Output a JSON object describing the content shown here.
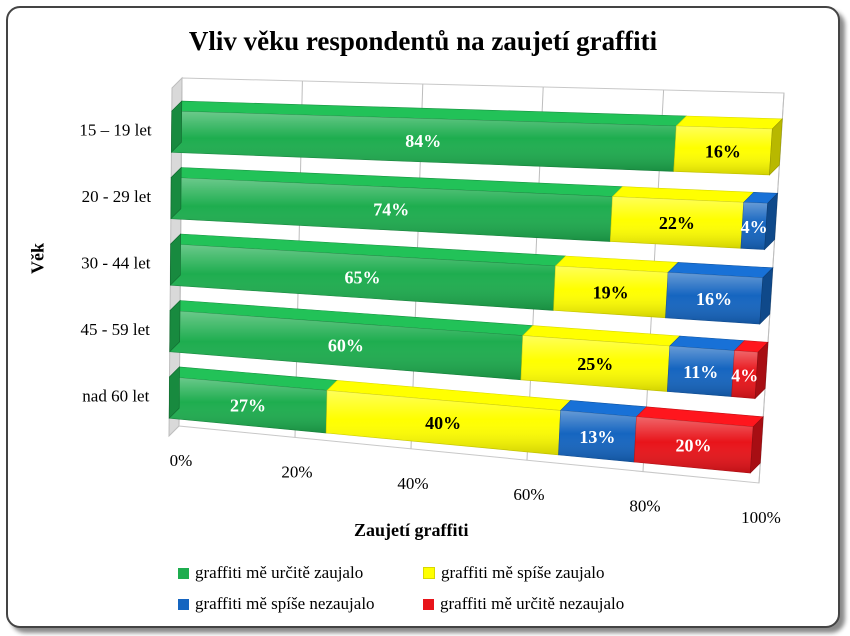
{
  "chart_data": {
    "type": "bar",
    "orientation": "horizontal",
    "stacked": "percent",
    "three_d": true,
    "title": "Vliv věku respondentů na zaujetí graffiti",
    "xlabel": "Zaujetí graffiti",
    "ylabel": "Věk",
    "categories": [
      "15 – 19 let",
      "20 - 29 let",
      "30 - 44 let",
      "45 - 59 let",
      "nad 60 let"
    ],
    "xticks": [
      "0%",
      "20%",
      "40%",
      "60%",
      "80%",
      "100%"
    ],
    "xlim": [
      0,
      100
    ],
    "series": [
      {
        "name": "graffiti mě určitě zaujalo",
        "color": "#1ead4f",
        "values": [
          84,
          74,
          65,
          60,
          27
        ],
        "labels": [
          "84%",
          "74%",
          "65%",
          "60%",
          "27%"
        ]
      },
      {
        "name": "graffiti mě spíše zaujalo",
        "color": "#ffff00",
        "values": [
          16,
          22,
          19,
          25,
          40
        ],
        "labels": [
          "16%",
          "22%",
          "19%",
          "25%",
          "40%"
        ]
      },
      {
        "name": "graffiti mě spíše nezaujalo",
        "color": "#1565c0",
        "values": [
          0,
          4,
          16,
          11,
          13
        ],
        "labels": [
          "",
          "4%",
          "16%",
          "11%",
          "13%"
        ]
      },
      {
        "name": "graffiti mě určitě nezaujalo",
        "color": "#e8141a",
        "values": [
          0,
          0,
          0,
          4,
          20
        ],
        "labels": [
          "",
          "",
          "",
          "4%",
          "20%"
        ]
      }
    ],
    "legend": "bottom",
    "grid": true
  }
}
